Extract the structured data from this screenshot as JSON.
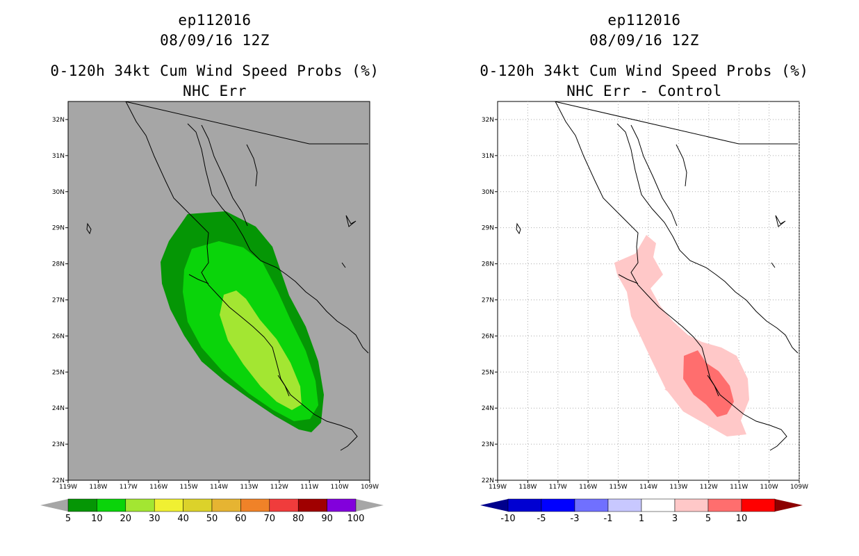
{
  "panels": [
    {
      "storm": "ep112016",
      "datetime": "08/09/16 12Z",
      "product": "0-120h 34kt Cum Wind Speed Probs (%)",
      "subtitle": "NHC Err",
      "map_background": "#a6a6a6",
      "colorbar": {
        "labels": [
          "5",
          "10",
          "20",
          "30",
          "40",
          "50",
          "60",
          "70",
          "80",
          "90",
          "100"
        ],
        "colors": [
          "#059605",
          "#0ad40a",
          "#a3e632",
          "#f0f032",
          "#dcd22a",
          "#e6b432",
          "#f08228",
          "#f03c3c",
          "#a00000",
          "#8200dc"
        ],
        "left_triangle_color": "#a6a6a6",
        "right_triangle_color": "#a6a6a6"
      }
    },
    {
      "storm": "ep112016",
      "datetime": "08/09/16 12Z",
      "product": "0-120h 34kt Cum Wind Speed Probs (%)",
      "subtitle": "NHC Err - Control",
      "map_background": "#ffffff",
      "colorbar": {
        "labels": [
          "-10",
          "-5",
          "-3",
          "-1",
          "1",
          "3",
          "5",
          "10"
        ],
        "colors": [
          "#0000d2",
          "#0000ff",
          "#7070ff",
          "#c8c8ff",
          "#ffffff",
          "#ffc8c8",
          "#ff6e6e",
          "#ff0000"
        ],
        "left_triangle_color": "#00008c",
        "right_triangle_color": "#8c0000"
      }
    }
  ],
  "axes": {
    "lat_labels": [
      "22N",
      "23N",
      "24N",
      "25N",
      "26N",
      "27N",
      "28N",
      "29N",
      "30N",
      "31N",
      "32N"
    ],
    "lon_labels": [
      "119W",
      "118W",
      "117W",
      "116W",
      "115W",
      "114W",
      "113W",
      "112W",
      "111W",
      "110W",
      "109W"
    ],
    "lat_range": [
      22,
      32.5
    ],
    "lon_range": [
      -119,
      -109
    ]
  },
  "contours_left": [
    {
      "level": "5",
      "color": "#059605"
    },
    {
      "level": "10",
      "color": "#0ad40a"
    },
    {
      "level": "20",
      "color": "#a3e632"
    }
  ],
  "contours_right": [
    {
      "level": "1",
      "color": "#ffc8c8"
    },
    {
      "level": "3",
      "color": "#ff6e6e"
    }
  ]
}
